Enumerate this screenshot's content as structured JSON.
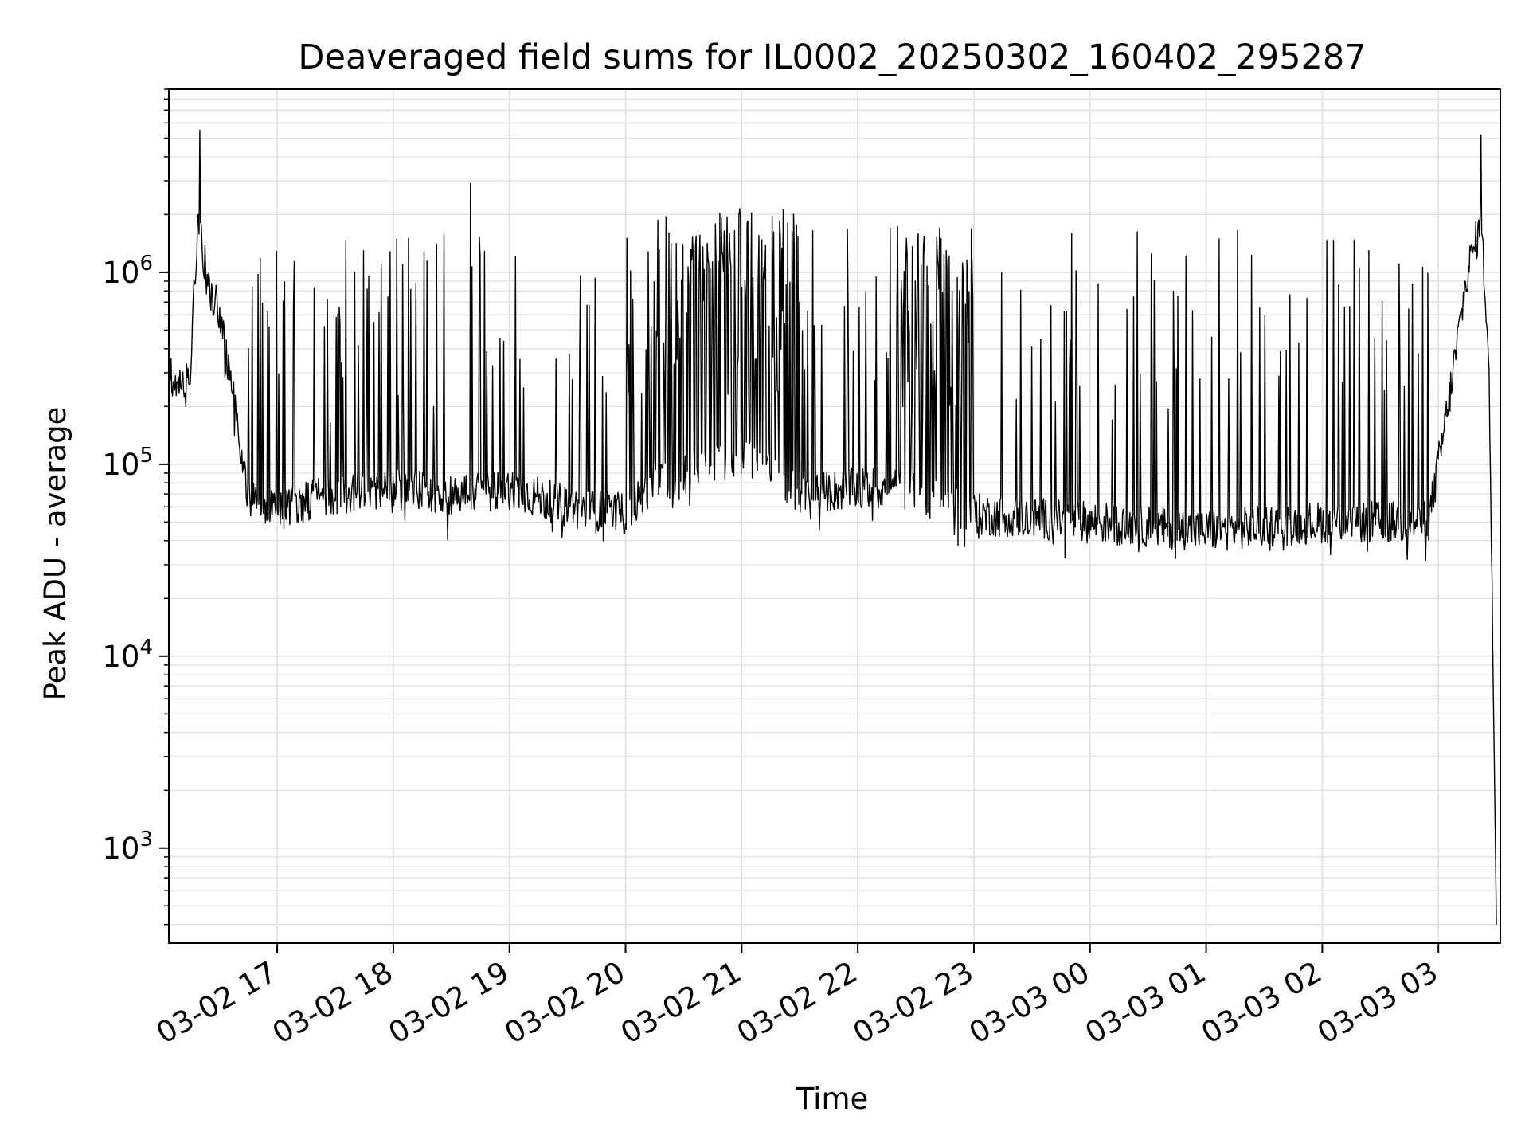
{
  "chart_data": {
    "type": "line",
    "title": "Deaveraged field sums for IL0002_20250302_160402_295287",
    "xlabel": "Time",
    "ylabel": "Peak ADU - average",
    "y_scale": "log",
    "grid": true,
    "grid_color": "#e0e0e0",
    "line_color": "#000000",
    "xlim": [
      "2025-03-02 16:04",
      "2025-03-03 03:32"
    ],
    "ylim": [
      320,
      9000000
    ],
    "x_ticks": [
      {
        "value": "2025-03-02 17:00",
        "label": "03-02 17"
      },
      {
        "value": "2025-03-02 18:00",
        "label": "03-02 18"
      },
      {
        "value": "2025-03-02 19:00",
        "label": "03-02 19"
      },
      {
        "value": "2025-03-02 20:00",
        "label": "03-02 20"
      },
      {
        "value": "2025-03-02 21:00",
        "label": "03-02 21"
      },
      {
        "value": "2025-03-02 22:00",
        "label": "03-02 22"
      },
      {
        "value": "2025-03-02 23:00",
        "label": "03-02 23"
      },
      {
        "value": "2025-03-03 00:00",
        "label": "03-03 00"
      },
      {
        "value": "2025-03-03 01:00",
        "label": "03-03 01"
      },
      {
        "value": "2025-03-03 02:00",
        "label": "03-03 02"
      },
      {
        "value": "2025-03-03 03:00",
        "label": "03-03 03"
      }
    ],
    "y_ticks": [
      {
        "value": 1000,
        "base": "10",
        "exp": "3"
      },
      {
        "value": 10000,
        "base": "10",
        "exp": "4"
      },
      {
        "value": 100000,
        "base": "10",
        "exp": "5"
      },
      {
        "value": 1000000,
        "base": "10",
        "exp": "6"
      }
    ],
    "series": [
      {
        "baseline_points": [
          [
            "2025-03-02 16:04",
            300000
          ],
          [
            "2025-03-02 16:10",
            250000
          ],
          [
            "2025-03-02 16:15",
            300000
          ],
          [
            "2025-03-02 16:19",
            2000000
          ],
          [
            "2025-03-02 16:24",
            900000
          ],
          [
            "2025-03-02 16:30",
            600000
          ],
          [
            "2025-03-02 16:35",
            300000
          ],
          [
            "2025-03-02 16:40",
            150000
          ],
          [
            "2025-03-02 16:45",
            70000
          ],
          [
            "2025-03-02 17:00",
            60000
          ],
          [
            "2025-03-02 17:30",
            70000
          ],
          [
            "2025-03-02 18:00",
            75000
          ],
          [
            "2025-03-02 18:30",
            70000
          ],
          [
            "2025-03-02 19:00",
            75000
          ],
          [
            "2025-03-02 19:30",
            60000
          ],
          [
            "2025-03-02 20:00",
            55000
          ],
          [
            "2025-03-02 20:15",
            80000
          ],
          [
            "2025-03-02 20:30",
            90000
          ],
          [
            "2025-03-02 21:00",
            110000
          ],
          [
            "2025-03-02 21:15",
            90000
          ],
          [
            "2025-03-02 21:30",
            70000
          ],
          [
            "2025-03-02 22:00",
            75000
          ],
          [
            "2025-03-02 22:30",
            75000
          ],
          [
            "2025-03-02 22:45",
            60000
          ],
          [
            "2025-03-02 23:00",
            55000
          ],
          [
            "2025-03-03 00:00",
            50000
          ],
          [
            "2025-03-03 01:00",
            45000
          ],
          [
            "2025-03-03 02:00",
            50000
          ],
          [
            "2025-03-03 02:55",
            50000
          ],
          [
            "2025-03-03 03:05",
            200000
          ],
          [
            "2025-03-03 03:15",
            1000000
          ],
          [
            "2025-03-03 03:22",
            1800000
          ],
          [
            "2025-03-03 03:26",
            400000
          ],
          [
            "2025-03-03 03:30",
            400
          ]
        ],
        "spike_segments": [
          {
            "from": "2025-03-02 16:45",
            "to": "2025-03-02 20:00",
            "count": 70,
            "max": 1600000
          },
          {
            "from": "2025-03-02 20:00",
            "to": "2025-03-02 20:25",
            "count": 28,
            "max": 2000000
          },
          {
            "from": "2025-03-02 20:25",
            "to": "2025-03-02 21:30",
            "count": 140,
            "max": 2200000
          },
          {
            "from": "2025-03-02 21:30",
            "to": "2025-03-02 22:20",
            "count": 20,
            "max": 1800000
          },
          {
            "from": "2025-03-02 22:20",
            "to": "2025-03-02 23:00",
            "count": 90,
            "max": 1800000
          },
          {
            "from": "2025-03-02 23:00",
            "to": "2025-03-03 03:00",
            "count": 75,
            "max": 1700000
          }
        ],
        "peaks": [
          [
            "2025-03-02 16:20",
            5500000
          ],
          [
            "2025-03-02 18:40",
            2900000
          ],
          [
            "2025-03-03 03:22",
            5200000
          ]
        ]
      }
    ]
  }
}
